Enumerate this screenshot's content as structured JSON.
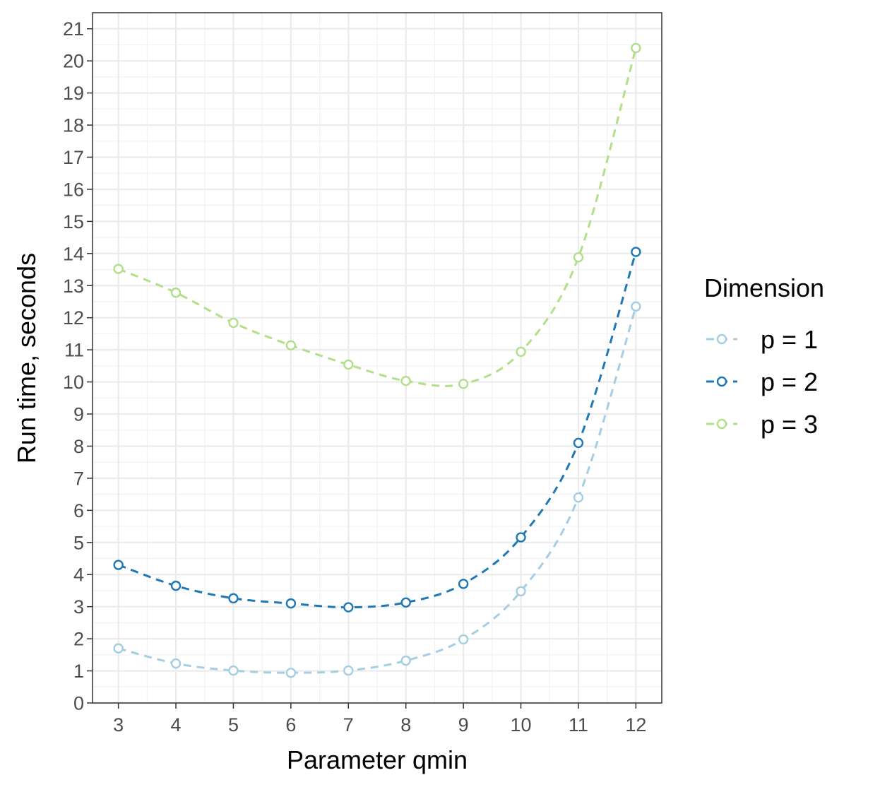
{
  "chart_data": {
    "type": "line",
    "xlabel": "Parameter qmin",
    "ylabel": "Run time, seconds",
    "x": [
      3,
      4,
      5,
      6,
      7,
      8,
      9,
      10,
      11,
      12
    ],
    "xlim": [
      2.55,
      12.45
    ],
    "ylim": [
      0,
      21.5
    ],
    "x_ticks": [
      3,
      4,
      5,
      6,
      7,
      8,
      9,
      10,
      11,
      12
    ],
    "y_ticks": [
      0,
      1,
      2,
      3,
      4,
      5,
      6,
      7,
      8,
      9,
      10,
      11,
      12,
      13,
      14,
      15,
      16,
      17,
      18,
      19,
      20,
      21
    ],
    "grid": true,
    "legend": {
      "title": "Dimension",
      "position": "right"
    },
    "series": [
      {
        "name": "p = 1",
        "color": "#a6cee3",
        "values": [
          1.7,
          1.23,
          1.01,
          0.94,
          1.01,
          1.32,
          1.98,
          3.48,
          6.4,
          12.35
        ]
      },
      {
        "name": "p = 2",
        "color": "#1f78b4",
        "values": [
          4.3,
          3.65,
          3.26,
          3.1,
          2.98,
          3.13,
          3.71,
          5.16,
          8.1,
          14.05
        ]
      },
      {
        "name": "p = 3",
        "color": "#b2df8a",
        "values": [
          13.52,
          12.78,
          11.84,
          11.14,
          10.54,
          10.03,
          9.94,
          10.94,
          13.88,
          20.4
        ]
      }
    ]
  }
}
